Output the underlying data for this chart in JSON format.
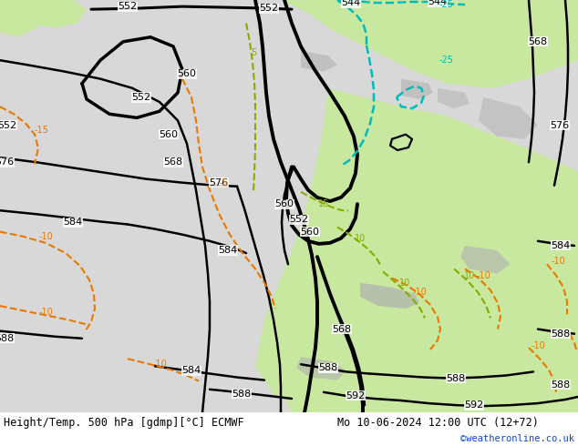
{
  "title_left": "Height/Temp. 500 hPa [gdmp][°C] ECMWF",
  "title_right": "Mo 10-06-2024 12:00 UTC (12+72)",
  "watermark": "©weatheronline.co.uk",
  "bg_land": "#c8e8a0",
  "bg_sea": "#d8d8d8",
  "bg_terrain": "#b0b0b0",
  "black": "#000000",
  "orange": "#e87800",
  "green": "#88aa00",
  "cyan": "#00bbbb",
  "fig_width": 6.34,
  "fig_height": 4.9,
  "dpi": 100,
  "title_fontsize": 8.5,
  "watermark_color": "#1144cc"
}
